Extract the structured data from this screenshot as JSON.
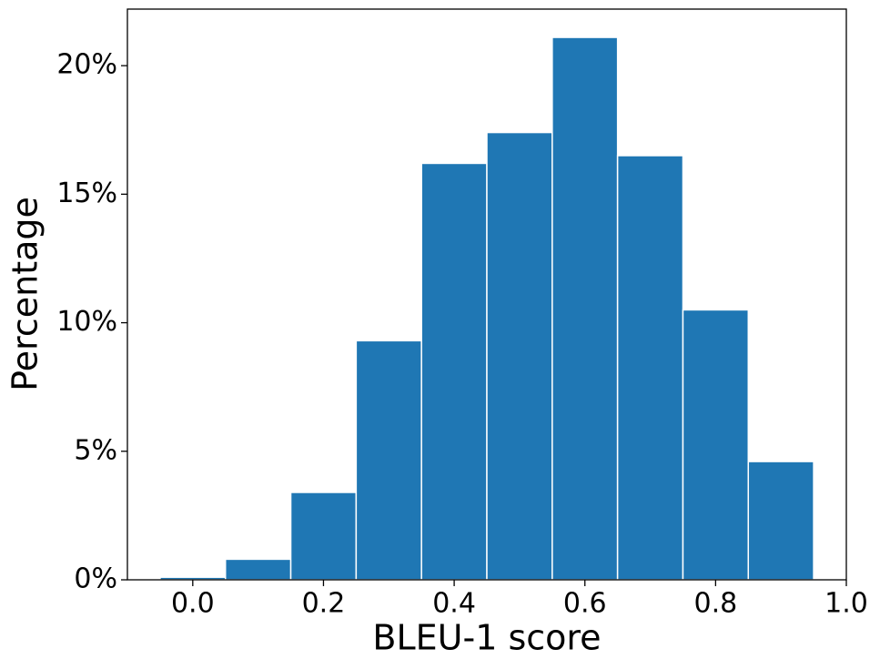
{
  "chart_data": {
    "type": "histogram",
    "x_label": "BLEU-1 score",
    "y_label": "Percentage",
    "bins": [
      -0.05,
      0.05,
      0.15,
      0.25,
      0.35,
      0.45,
      0.55,
      0.65,
      0.75,
      0.85,
      0.95
    ],
    "values": [
      0.1,
      0.8,
      3.4,
      9.3,
      16.2,
      17.4,
      21.1,
      16.5,
      10.5,
      4.6
    ],
    "color": "#1f77b4",
    "xlim": [
      -0.1,
      1.0
    ],
    "xticks": [
      {
        "value": 0,
        "label": "0.0"
      },
      0.2,
      0.4,
      0.6,
      0.8,
      {
        "value": 1,
        "label": "1.0"
      }
    ],
    "ylim": [
      0,
      22.2
    ],
    "yticks": [
      {
        "value": 0,
        "label": "0%"
      },
      {
        "value": 5,
        "label": "5%"
      },
      {
        "value": 10,
        "label": "10%"
      },
      {
        "value": 15,
        "label": "15%"
      },
      {
        "value": 20,
        "label": "20%"
      }
    ]
  }
}
